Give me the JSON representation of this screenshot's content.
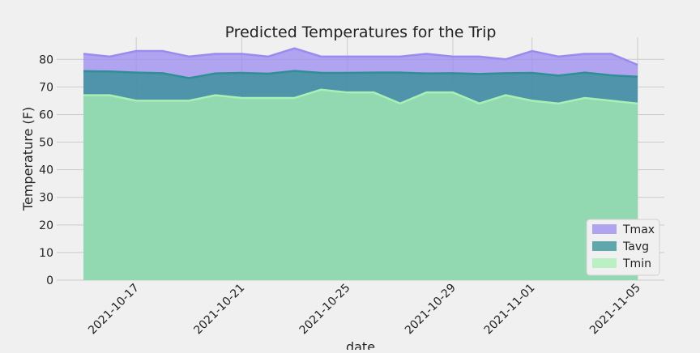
{
  "chart_data": {
    "type": "area",
    "title": "Predicted Temperatures for the Trip",
    "xlabel": "date",
    "ylabel": "Temperature (F)",
    "ylim": [
      0,
      88
    ],
    "yticks": [
      0,
      10,
      20,
      30,
      40,
      50,
      60,
      70,
      80
    ],
    "xticks": [
      "2021-10-17",
      "2021-10-21",
      "2021-10-25",
      "2021-10-29",
      "2021-11-01",
      "2021-11-05"
    ],
    "x": [
      "2021-10-15",
      "2021-10-16",
      "2021-10-17",
      "2021-10-18",
      "2021-10-19",
      "2021-10-20",
      "2021-10-21",
      "2021-10-22",
      "2021-10-23",
      "2021-10-24",
      "2021-10-25",
      "2021-10-26",
      "2021-10-27",
      "2021-10-28",
      "2021-10-29",
      "2021-10-30",
      "2021-10-31",
      "2021-11-01",
      "2021-11-02",
      "2021-11-03",
      "2021-11-04",
      "2021-11-05"
    ],
    "grid": true,
    "stacked": false,
    "legend_position": "lower-right",
    "series": [
      {
        "name": "Tmax",
        "color": "#9b8af0",
        "values": [
          82,
          81,
          83,
          83,
          81,
          82,
          82,
          81,
          84,
          81,
          81,
          81,
          81,
          82,
          81,
          81,
          80,
          83,
          81,
          82,
          82,
          78
        ]
      },
      {
        "name": "Tavg",
        "color": "#2f8f94",
        "values": [
          75.7,
          75.6,
          75.2,
          75.0,
          73.2,
          74.9,
          75.1,
          74.8,
          75.8,
          75.1,
          75.1,
          75.2,
          75.2,
          74.9,
          75.0,
          74.7,
          75.0,
          75.1,
          74.1,
          75.2,
          74.2,
          73.7
        ]
      },
      {
        "name": "Tmin",
        "color": "#a8f0b4",
        "values": [
          67,
          67,
          65,
          65,
          65,
          67,
          66,
          66,
          66,
          69,
          68,
          68,
          64,
          68,
          68,
          64,
          67,
          65,
          64,
          66,
          65,
          64
        ]
      }
    ]
  }
}
